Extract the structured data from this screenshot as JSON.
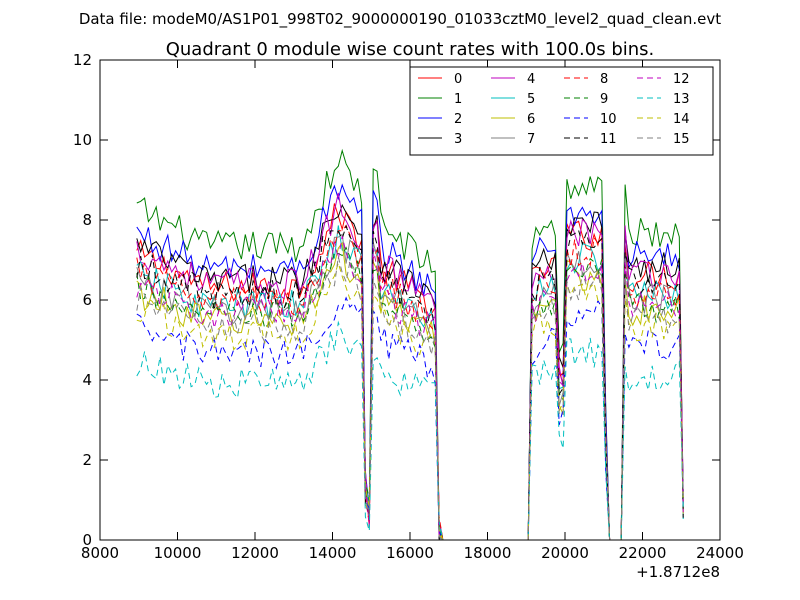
{
  "chart_data": {
    "type": "line",
    "suptitle": "Data file: modeM0/AS1P01_998T02_9000000190_01033cztM0_level2_quad_clean.evt",
    "title": "Quadrant 0 module wise count rates with 100.0s bins.",
    "xlabel": "",
    "ylabel": "",
    "x_offset_label": "+1.8712e8",
    "xlim": [
      8000,
      24000
    ],
    "ylim": [
      0,
      12
    ],
    "xticks": [
      "8000",
      "10000",
      "12000",
      "14000",
      "16000",
      "18000",
      "20000",
      "22000",
      "24000"
    ],
    "yticks": [
      "0",
      "2",
      "4",
      "6",
      "8",
      "10",
      "12"
    ],
    "grid": false,
    "legend_position": "top-right",
    "segments": [
      {
        "x_start": 8950,
        "x_end": 14950
      },
      {
        "x_start": 14950,
        "x_end": 16750
      },
      {
        "x_start": 16750,
        "x_end": 19150
      },
      {
        "x_start": 19150,
        "x_end": 21150
      },
      {
        "x_start": 21150,
        "x_end": 21500
      },
      {
        "x_start": 21500,
        "x_end": 23050
      }
    ],
    "series": [
      {
        "name": "0",
        "color": "#ff0000",
        "dashed": false,
        "level": 6.8
      },
      {
        "name": "1",
        "color": "#008000",
        "dashed": false,
        "level": 7.9
      },
      {
        "name": "2",
        "color": "#0000ff",
        "dashed": false,
        "level": 7.3
      },
      {
        "name": "3",
        "color": "#000000",
        "dashed": false,
        "level": 7.0
      },
      {
        "name": "4",
        "color": "#bf00bf",
        "dashed": false,
        "level": 6.9
      },
      {
        "name": "5",
        "color": "#00bfbf",
        "dashed": false,
        "level": 6.3
      },
      {
        "name": "6",
        "color": "#bfbf00",
        "dashed": false,
        "level": 5.9
      },
      {
        "name": "7",
        "color": "#808080",
        "dashed": false,
        "level": 6.2
      },
      {
        "name": "8",
        "color": "#ff0000",
        "dashed": true,
        "level": 6.4
      },
      {
        "name": "9",
        "color": "#008000",
        "dashed": true,
        "level": 6.0
      },
      {
        "name": "10",
        "color": "#0000ff",
        "dashed": true,
        "level": 5.0
      },
      {
        "name": "11",
        "color": "#000000",
        "dashed": true,
        "level": 6.6
      },
      {
        "name": "12",
        "color": "#bf00bf",
        "dashed": true,
        "level": 6.1
      },
      {
        "name": "13",
        "color": "#00bfbf",
        "dashed": true,
        "level": 4.2
      },
      {
        "name": "14",
        "color": "#bfbf00",
        "dashed": true,
        "level": 5.5
      },
      {
        "name": "15",
        "color": "#808080",
        "dashed": true,
        "level": 5.7
      }
    ]
  }
}
